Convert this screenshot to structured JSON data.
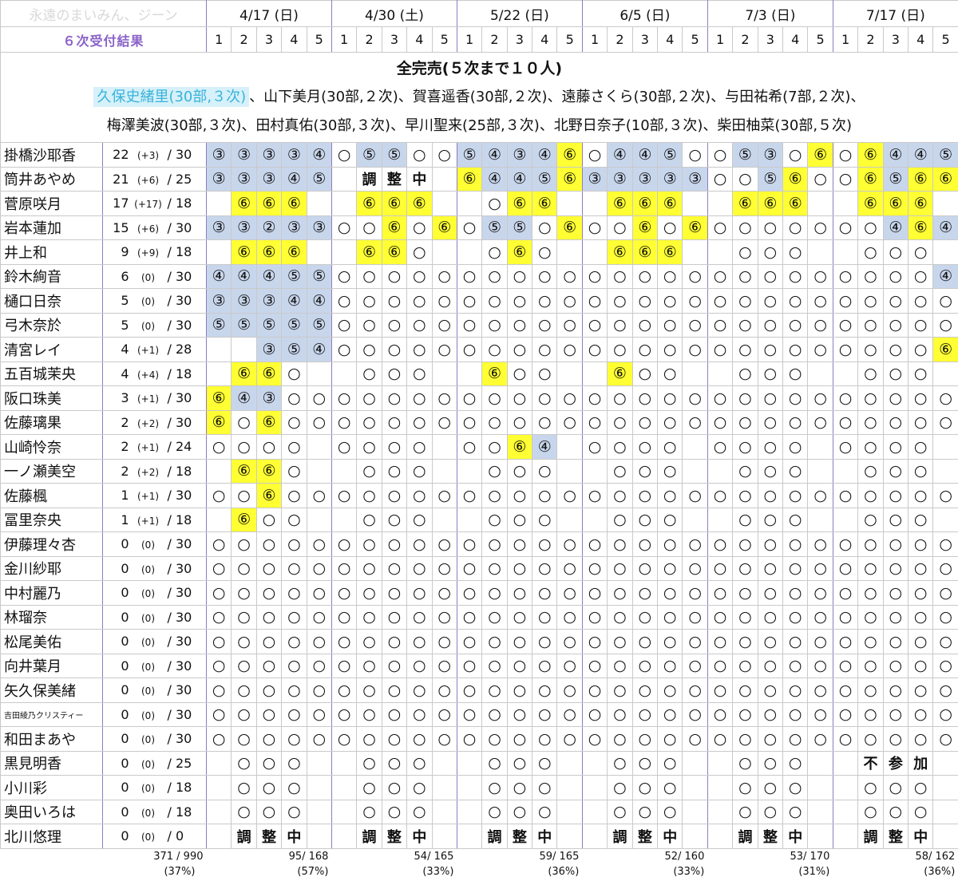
{
  "header": {
    "watermark": "永遠のまいみん、ジーン",
    "title": "６次受付結果",
    "dates": [
      "4/17 (日)",
      "4/30 (土)",
      "5/22 (日)",
      "6/5 (日)",
      "7/3 (日)",
      "7/17 (日)"
    ],
    "slots": [
      "1",
      "2",
      "3",
      "4",
      "5"
    ]
  },
  "banner": {
    "headline": "全完売(５次まで１０人)",
    "highlight": "久保史緒里(30部,３次)",
    "line1": "、山下美月(30部,２次)、賀喜遥香(30部,２次)、遠藤さくら(30部,２次)、与田祐希(7部,２次)、",
    "line2": "梅澤美波(30部,３次)、田村真佑(30部,３次)、早川聖来(25部,３次)、北野日奈子(10部,３次)、柴田柚菜(30部,５次)"
  },
  "cell_fill": {
    "②": "#c8d6ec",
    "③": "#c8d6ec",
    "④": "#c8d6ec",
    "⑤": "#c8d6ec",
    "⑥": "#ffff33"
  },
  "members": [
    {
      "name": "掛橋沙耶香",
      "count": "22",
      "delta": "(+3)",
      "cap": "/ 30",
      "cells": [
        "③",
        "③",
        "③",
        "③",
        "④",
        "○",
        "⑤",
        "⑤",
        "○",
        "○",
        "⑤",
        "④",
        "③",
        "④",
        "⑥",
        "○",
        "④",
        "④",
        "⑤",
        "○",
        "○",
        "⑤",
        "③",
        "○",
        "⑥",
        "○",
        "⑥",
        "④",
        "④",
        "⑤"
      ]
    },
    {
      "name": "筒井あやめ",
      "count": "21",
      "delta": "(+6)",
      "cap": "/ 25",
      "cells": [
        "③",
        "③",
        "③",
        "④",
        "⑤",
        "",
        "調",
        "整",
        "中",
        "",
        "⑥",
        "④",
        "④",
        "⑤",
        "⑥",
        "③",
        "③",
        "③",
        "③",
        "③",
        "○",
        "○",
        "⑤",
        "⑥",
        "○",
        "○",
        "⑥",
        "⑤",
        "⑥",
        "⑥"
      ]
    },
    {
      "name": "菅原咲月",
      "count": "17",
      "delta": "(+17)",
      "cap": "/ 18",
      "cells": [
        "",
        "⑥",
        "⑥",
        "⑥",
        "",
        "",
        "⑥",
        "⑥",
        "⑥",
        "",
        "",
        "○",
        "⑥",
        "⑥",
        "",
        "",
        "⑥",
        "⑥",
        "⑥",
        "",
        "",
        "⑥",
        "⑥",
        "⑥",
        "",
        "",
        "⑥",
        "⑥",
        "⑥",
        ""
      ]
    },
    {
      "name": "岩本蓮加",
      "count": "15",
      "delta": "(+6)",
      "cap": "/ 30",
      "cells": [
        "③",
        "③",
        "②",
        "③",
        "③",
        "○",
        "○",
        "⑥",
        "○",
        "⑥",
        "○",
        "⑤",
        "⑤",
        "○",
        "⑥",
        "○",
        "○",
        "⑥",
        "○",
        "⑥",
        "○",
        "○",
        "○",
        "○",
        "○",
        "○",
        "○",
        "④",
        "⑥",
        "④"
      ]
    },
    {
      "name": "井上和",
      "count": "9",
      "delta": "(+9)",
      "cap": "/ 18",
      "cells": [
        "",
        "⑥",
        "⑥",
        "⑥",
        "",
        "",
        "⑥",
        "⑥",
        "○",
        "",
        "",
        "○",
        "⑥",
        "○",
        "",
        "",
        "⑥",
        "⑥",
        "⑥",
        "",
        "",
        "○",
        "○",
        "○",
        "",
        "",
        "○",
        "○",
        "○",
        ""
      ]
    },
    {
      "name": "鈴木絢音",
      "count": "6",
      "delta": "(0)",
      "cap": "/ 30",
      "cells": [
        "④",
        "④",
        "④",
        "⑤",
        "⑤",
        "○",
        "○",
        "○",
        "○",
        "○",
        "○",
        "○",
        "○",
        "○",
        "○",
        "○",
        "○",
        "○",
        "○",
        "○",
        "○",
        "○",
        "○",
        "○",
        "○",
        "○",
        "○",
        "○",
        "○",
        "④"
      ]
    },
    {
      "name": "樋口日奈",
      "count": "5",
      "delta": "(0)",
      "cap": "/ 30",
      "cells": [
        "③",
        "③",
        "③",
        "④",
        "④",
        "○",
        "○",
        "○",
        "○",
        "○",
        "○",
        "○",
        "○",
        "○",
        "○",
        "○",
        "○",
        "○",
        "○",
        "○",
        "○",
        "○",
        "○",
        "○",
        "○",
        "○",
        "○",
        "○",
        "○",
        "○"
      ]
    },
    {
      "name": "弓木奈於",
      "count": "5",
      "delta": "(0)",
      "cap": "/ 30",
      "cells": [
        "⑤",
        "⑤",
        "⑤",
        "⑤",
        "⑤",
        "○",
        "○",
        "○",
        "○",
        "○",
        "○",
        "○",
        "○",
        "○",
        "○",
        "○",
        "○",
        "○",
        "○",
        "○",
        "○",
        "○",
        "○",
        "○",
        "○",
        "○",
        "○",
        "○",
        "○",
        "○"
      ]
    },
    {
      "name": "清宮レイ",
      "count": "4",
      "delta": "(+1)",
      "cap": "/ 28",
      "cells": [
        "",
        "",
        "③",
        "⑤",
        "④",
        "○",
        "○",
        "○",
        "○",
        "○",
        "○",
        "○",
        "○",
        "○",
        "○",
        "○",
        "○",
        "○",
        "○",
        "○",
        "○",
        "○",
        "○",
        "○",
        "○",
        "○",
        "○",
        "○",
        "○",
        "⑥"
      ]
    },
    {
      "name": "五百城茉央",
      "count": "4",
      "delta": "(+4)",
      "cap": "/ 18",
      "cells": [
        "",
        "⑥",
        "⑥",
        "○",
        "",
        "",
        "○",
        "○",
        "○",
        "",
        "",
        "⑥",
        "○",
        "○",
        "",
        "",
        "⑥",
        "○",
        "○",
        "",
        "",
        "○",
        "○",
        "○",
        "",
        "",
        "○",
        "○",
        "○",
        ""
      ]
    },
    {
      "name": "阪口珠美",
      "count": "3",
      "delta": "(+1)",
      "cap": "/ 30",
      "cells": [
        "⑥",
        "④",
        "③",
        "○",
        "○",
        "○",
        "○",
        "○",
        "○",
        "○",
        "○",
        "○",
        "○",
        "○",
        "○",
        "○",
        "○",
        "○",
        "○",
        "○",
        "○",
        "○",
        "○",
        "○",
        "○",
        "○",
        "○",
        "○",
        "○",
        "○"
      ]
    },
    {
      "name": "佐藤璃果",
      "count": "2",
      "delta": "(+2)",
      "cap": "/ 30",
      "cells": [
        "⑥",
        "○",
        "⑥",
        "○",
        "○",
        "○",
        "○",
        "○",
        "○",
        "○",
        "○",
        "○",
        "○",
        "○",
        "○",
        "○",
        "○",
        "○",
        "○",
        "○",
        "○",
        "○",
        "○",
        "○",
        "○",
        "○",
        "○",
        "○",
        "○",
        "○"
      ]
    },
    {
      "name": "山崎怜奈",
      "count": "2",
      "delta": "(+1)",
      "cap": "/ 24",
      "cells": [
        "○",
        "○",
        "○",
        "○",
        "",
        "○",
        "○",
        "○",
        "○",
        "",
        "○",
        "○",
        "⑥",
        "④",
        "",
        "○",
        "○",
        "○",
        "○",
        "",
        "○",
        "○",
        "○",
        "○",
        "",
        "○",
        "○",
        "○",
        "○",
        ""
      ]
    },
    {
      "name": "一ノ瀬美空",
      "count": "2",
      "delta": "(+2)",
      "cap": "/ 18",
      "cells": [
        "",
        "⑥",
        "⑥",
        "○",
        "",
        "",
        "○",
        "○",
        "○",
        "",
        "",
        "○",
        "○",
        "○",
        "",
        "",
        "○",
        "○",
        "○",
        "",
        "",
        "○",
        "○",
        "○",
        "",
        "",
        "○",
        "○",
        "○",
        ""
      ]
    },
    {
      "name": "佐藤楓",
      "count": "1",
      "delta": "(+1)",
      "cap": "/ 30",
      "cells": [
        "○",
        "○",
        "⑥",
        "○",
        "○",
        "○",
        "○",
        "○",
        "○",
        "○",
        "○",
        "○",
        "○",
        "○",
        "○",
        "○",
        "○",
        "○",
        "○",
        "○",
        "○",
        "○",
        "○",
        "○",
        "○",
        "○",
        "○",
        "○",
        "○",
        "○"
      ]
    },
    {
      "name": "冨里奈央",
      "count": "1",
      "delta": "(+1)",
      "cap": "/ 18",
      "cells": [
        "",
        "⑥",
        "○",
        "○",
        "",
        "",
        "○",
        "○",
        "○",
        "",
        "",
        "○",
        "○",
        "○",
        "",
        "",
        "○",
        "○",
        "○",
        "",
        "",
        "○",
        "○",
        "○",
        "",
        "",
        "○",
        "○",
        "○",
        ""
      ]
    },
    {
      "name": "伊藤理々杏",
      "count": "0",
      "delta": "(0)",
      "cap": "/ 30",
      "cells": [
        "○",
        "○",
        "○",
        "○",
        "○",
        "○",
        "○",
        "○",
        "○",
        "○",
        "○",
        "○",
        "○",
        "○",
        "○",
        "○",
        "○",
        "○",
        "○",
        "○",
        "○",
        "○",
        "○",
        "○",
        "○",
        "○",
        "○",
        "○",
        "○",
        "○"
      ]
    },
    {
      "name": "金川紗耶",
      "count": "0",
      "delta": "(0)",
      "cap": "/ 30",
      "cells": [
        "○",
        "○",
        "○",
        "○",
        "○",
        "○",
        "○",
        "○",
        "○",
        "○",
        "○",
        "○",
        "○",
        "○",
        "○",
        "○",
        "○",
        "○",
        "○",
        "○",
        "○",
        "○",
        "○",
        "○",
        "○",
        "○",
        "○",
        "○",
        "○",
        "○"
      ]
    },
    {
      "name": "中村麗乃",
      "count": "0",
      "delta": "(0)",
      "cap": "/ 30",
      "cells": [
        "○",
        "○",
        "○",
        "○",
        "○",
        "○",
        "○",
        "○",
        "○",
        "○",
        "○",
        "○",
        "○",
        "○",
        "○",
        "○",
        "○",
        "○",
        "○",
        "○",
        "○",
        "○",
        "○",
        "○",
        "○",
        "○",
        "○",
        "○",
        "○",
        "○"
      ]
    },
    {
      "name": "林瑠奈",
      "count": "0",
      "delta": "(0)",
      "cap": "/ 30",
      "cells": [
        "○",
        "○",
        "○",
        "○",
        "○",
        "○",
        "○",
        "○",
        "○",
        "○",
        "○",
        "○",
        "○",
        "○",
        "○",
        "○",
        "○",
        "○",
        "○",
        "○",
        "○",
        "○",
        "○",
        "○",
        "○",
        "○",
        "○",
        "○",
        "○",
        "○"
      ]
    },
    {
      "name": "松尾美佑",
      "count": "0",
      "delta": "(0)",
      "cap": "/ 30",
      "cells": [
        "○",
        "○",
        "○",
        "○",
        "○",
        "○",
        "○",
        "○",
        "○",
        "○",
        "○",
        "○",
        "○",
        "○",
        "○",
        "○",
        "○",
        "○",
        "○",
        "○",
        "○",
        "○",
        "○",
        "○",
        "○",
        "○",
        "○",
        "○",
        "○",
        "○"
      ]
    },
    {
      "name": "向井葉月",
      "count": "0",
      "delta": "(0)",
      "cap": "/ 30",
      "cells": [
        "○",
        "○",
        "○",
        "○",
        "○",
        "○",
        "○",
        "○",
        "○",
        "○",
        "○",
        "○",
        "○",
        "○",
        "○",
        "○",
        "○",
        "○",
        "○",
        "○",
        "○",
        "○",
        "○",
        "○",
        "○",
        "○",
        "○",
        "○",
        "○",
        "○"
      ]
    },
    {
      "name": "矢久保美緒",
      "count": "0",
      "delta": "(0)",
      "cap": "/ 30",
      "cells": [
        "○",
        "○",
        "○",
        "○",
        "○",
        "○",
        "○",
        "○",
        "○",
        "○",
        "○",
        "○",
        "○",
        "○",
        "○",
        "○",
        "○",
        "○",
        "○",
        "○",
        "○",
        "○",
        "○",
        "○",
        "○",
        "○",
        "○",
        "○",
        "○",
        "○"
      ]
    },
    {
      "name": "吉田綾乃クリスティー",
      "count": "0",
      "delta": "(0)",
      "cap": "/ 30",
      "cells": [
        "○",
        "○",
        "○",
        "○",
        "○",
        "○",
        "○",
        "○",
        "○",
        "○",
        "○",
        "○",
        "○",
        "○",
        "○",
        "○",
        "○",
        "○",
        "○",
        "○",
        "○",
        "○",
        "○",
        "○",
        "○",
        "○",
        "○",
        "○",
        "○",
        "○"
      ]
    },
    {
      "name": "和田まあや",
      "count": "0",
      "delta": "(0)",
      "cap": "/ 30",
      "cells": [
        "○",
        "○",
        "○",
        "○",
        "○",
        "○",
        "○",
        "○",
        "○",
        "○",
        "○",
        "○",
        "○",
        "○",
        "○",
        "○",
        "○",
        "○",
        "○",
        "○",
        "○",
        "○",
        "○",
        "○",
        "○",
        "○",
        "○",
        "○",
        "○",
        "○"
      ]
    },
    {
      "name": "黒見明香",
      "count": "0",
      "delta": "(0)",
      "cap": "/ 25",
      "cells": [
        "",
        "○",
        "○",
        "○",
        "",
        "",
        "○",
        "○",
        "○",
        "",
        "",
        "○",
        "○",
        "○",
        "",
        "",
        "○",
        "○",
        "○",
        "",
        "",
        "○",
        "○",
        "○",
        "",
        "",
        "不",
        "参",
        "加",
        ""
      ]
    },
    {
      "name": "小川彩",
      "count": "0",
      "delta": "(0)",
      "cap": "/ 18",
      "cells": [
        "",
        "○",
        "○",
        "○",
        "",
        "",
        "○",
        "○",
        "○",
        "",
        "",
        "○",
        "○",
        "○",
        "",
        "",
        "○",
        "○",
        "○",
        "",
        "",
        "○",
        "○",
        "○",
        "",
        "",
        "○",
        "○",
        "○",
        ""
      ]
    },
    {
      "name": "奥田いろは",
      "count": "0",
      "delta": "(0)",
      "cap": "/ 18",
      "cells": [
        "",
        "○",
        "○",
        "○",
        "",
        "",
        "○",
        "○",
        "○",
        "",
        "",
        "○",
        "○",
        "○",
        "",
        "",
        "○",
        "○",
        "○",
        "",
        "",
        "○",
        "○",
        "○",
        "",
        "",
        "○",
        "○",
        "○",
        ""
      ]
    },
    {
      "name": "北川悠理",
      "count": "0",
      "delta": "(0)",
      "cap": "/ 0",
      "cells": [
        "",
        "調",
        "整",
        "中",
        "",
        "",
        "調",
        "整",
        "中",
        "",
        "",
        "調",
        "整",
        "中",
        "",
        "",
        "調",
        "整",
        "中",
        "",
        "",
        "調",
        "整",
        "中",
        "",
        "",
        "調",
        "整",
        "中",
        ""
      ]
    }
  ],
  "totals": {
    "overall": "371 / 990",
    "overall_pct": "(37%)",
    "groups": [
      {
        "count": "95/ 168",
        "pct": "(57%)"
      },
      {
        "count": "54/ 165",
        "pct": "(33%)"
      },
      {
        "count": "59/ 165",
        "pct": "(36%)"
      },
      {
        "count": "52/ 160",
        "pct": "(33%)"
      },
      {
        "count": "53/ 170",
        "pct": "(31%)"
      },
      {
        "count": "58/ 162",
        "pct": "(36%)"
      }
    ]
  }
}
